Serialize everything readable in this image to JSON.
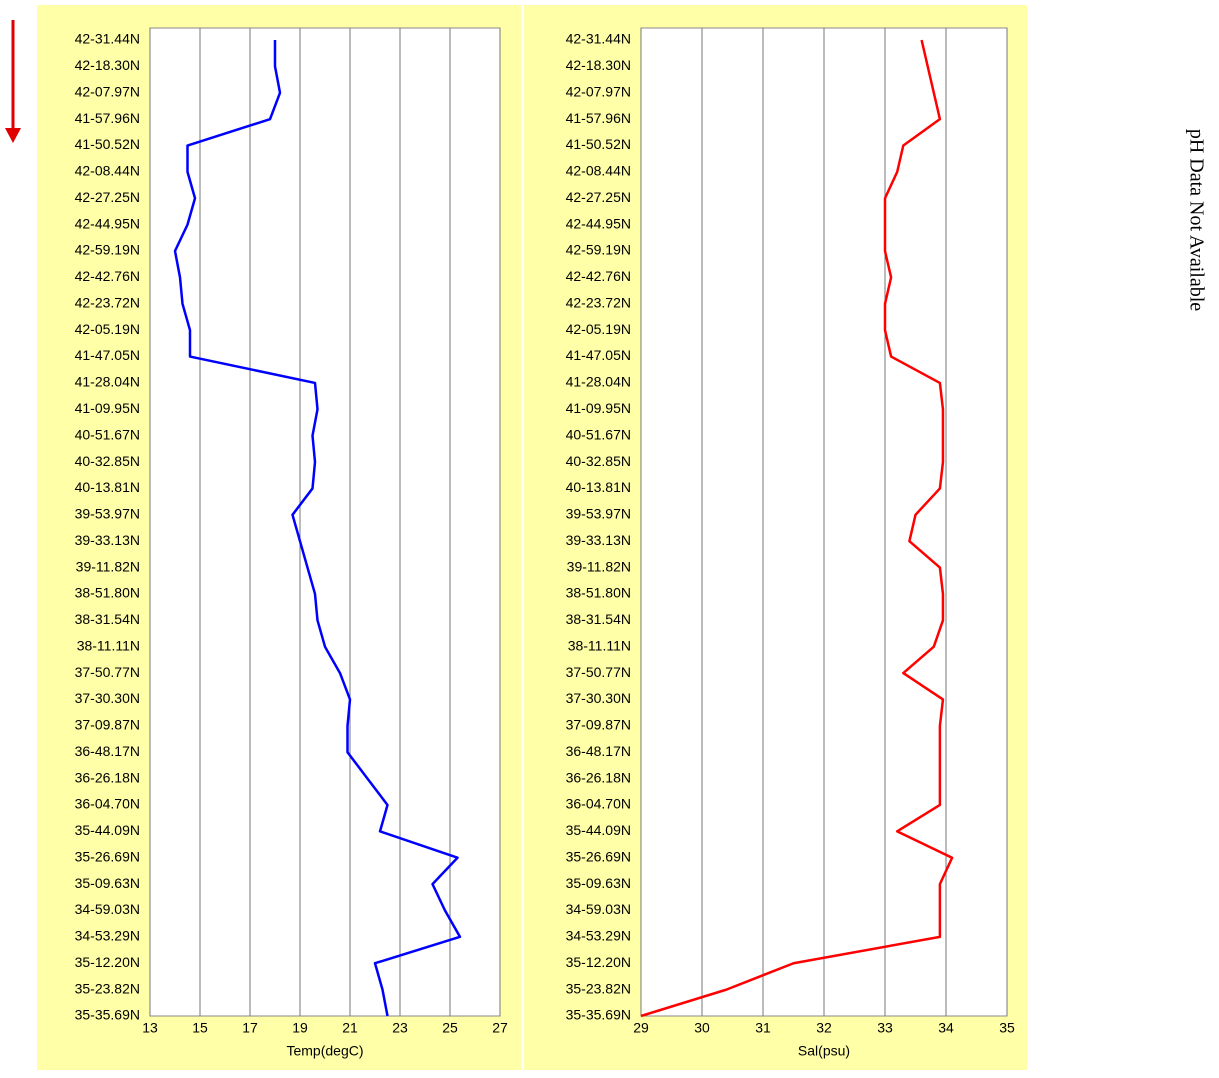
{
  "chart_data": [
    {
      "type": "line",
      "xlabel": "Temp(degC)",
      "color": "#0000ff",
      "categories": [
        "42-31.44N",
        "42-18.30N",
        "42-07.97N",
        "41-57.96N",
        "41-50.52N",
        "42-08.44N",
        "42-27.25N",
        "42-44.95N",
        "42-59.19N",
        "42-42.76N",
        "42-23.72N",
        "42-05.19N",
        "41-47.05N",
        "41-28.04N",
        "41-09.95N",
        "40-51.67N",
        "40-32.85N",
        "40-13.81N",
        "39-53.97N",
        "39-33.13N",
        "39-11.82N",
        "38-51.80N",
        "38-31.54N",
        "38-11.11N",
        "37-50.77N",
        "37-30.30N",
        "37-09.87N",
        "36-48.17N",
        "36-26.18N",
        "36-04.70N",
        "35-44.09N",
        "35-26.69N",
        "35-09.63N",
        "34-59.03N",
        "34-53.29N",
        "35-12.20N",
        "35-23.82N",
        "35-35.69N"
      ],
      "values": [
        18.0,
        18.0,
        18.2,
        17.8,
        14.5,
        14.5,
        14.8,
        14.5,
        14.0,
        14.2,
        14.3,
        14.6,
        14.6,
        19.6,
        19.7,
        19.5,
        19.6,
        19.5,
        18.7,
        19.0,
        19.3,
        19.6,
        19.7,
        20.0,
        20.6,
        21.0,
        20.9,
        20.9,
        21.7,
        22.5,
        22.2,
        25.3,
        24.3,
        24.8,
        25.4,
        22.0,
        22.3,
        22.5
      ],
      "xlim": [
        13,
        27
      ],
      "xticks": [
        13,
        15,
        17,
        19,
        21,
        23,
        25,
        27
      ],
      "grid": true
    },
    {
      "type": "line",
      "xlabel": "Sal(psu)",
      "color": "#ff0000",
      "categories": [
        "42-31.44N",
        "42-18.30N",
        "42-07.97N",
        "41-57.96N",
        "41-50.52N",
        "42-08.44N",
        "42-27.25N",
        "42-44.95N",
        "42-59.19N",
        "42-42.76N",
        "42-23.72N",
        "42-05.19N",
        "41-47.05N",
        "41-28.04N",
        "41-09.95N",
        "40-51.67N",
        "40-32.85N",
        "40-13.81N",
        "39-53.97N",
        "39-33.13N",
        "39-11.82N",
        "38-51.80N",
        "38-31.54N",
        "38-11.11N",
        "37-50.77N",
        "37-30.30N",
        "37-09.87N",
        "36-48.17N",
        "36-26.18N",
        "36-04.70N",
        "35-44.09N",
        "35-26.69N",
        "35-09.63N",
        "34-59.03N",
        "34-53.29N",
        "35-12.20N",
        "35-23.82N",
        "35-35.69N"
      ],
      "values": [
        33.6,
        33.7,
        33.8,
        33.9,
        33.3,
        33.2,
        33.0,
        33.0,
        33.0,
        33.1,
        33.0,
        33.0,
        33.1,
        33.9,
        33.95,
        33.95,
        33.95,
        33.9,
        33.5,
        33.4,
        33.9,
        33.95,
        33.95,
        33.8,
        33.3,
        33.95,
        33.9,
        33.9,
        33.9,
        33.9,
        33.2,
        34.1,
        33.9,
        33.9,
        33.9,
        31.5,
        30.4,
        29.0
      ],
      "xlim": [
        29,
        35
      ],
      "xticks": [
        29,
        30,
        31,
        32,
        33,
        34,
        35
      ],
      "grid": true
    }
  ],
  "note": "pH Data Not Available"
}
